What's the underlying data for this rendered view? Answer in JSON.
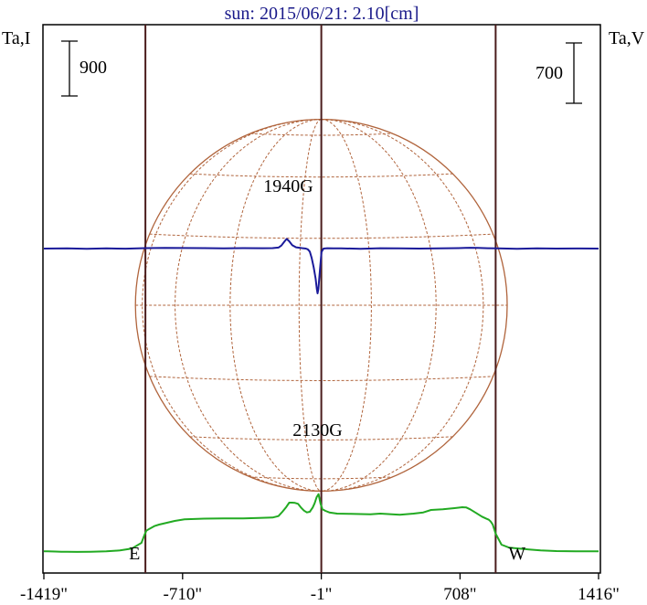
{
  "chart_data": {
    "type": "line",
    "title": "sun: 2015/06/21: 2.10[cm]",
    "left_axis_label": "Ta,I",
    "right_axis_label": "Ta,V",
    "left_scale_bar": {
      "label": "900",
      "value": 900
    },
    "right_scale_bar": {
      "label": "700",
      "value": 700
    },
    "x_ticks": [
      {
        "label": "-1419\"",
        "value": -1419
      },
      {
        "label": "-710\"",
        "value": -710
      },
      {
        "label": "-1\"",
        "value": -1
      },
      {
        "label": "708\"",
        "value": 708
      },
      {
        "label": "1416\"",
        "value": 1416
      }
    ],
    "xlim": [
      -1419,
      1416
    ],
    "limb_markers": [
      {
        "label": "E",
        "x": -900
      },
      {
        "label": "W",
        "x": 890
      }
    ],
    "center_line_x": -1,
    "annotations": [
      {
        "label": "1940G",
        "x": -170
      },
      {
        "label": "2130G",
        "x": -20
      }
    ],
    "solar_disk": {
      "radius_arcsec": 950,
      "color": "#b0643c"
    },
    "series": [
      {
        "color": "#22aa22",
        "x": [
          -1419,
          -1400,
          -1360,
          -1330,
          -1300,
          -1250,
          -1180,
          -1100,
          -1030,
          -970,
          -920,
          -905,
          -895,
          -880,
          -855,
          -830,
          -790,
          -750,
          -700,
          -600,
          -500,
          -400,
          -320,
          -250,
          -220,
          -200,
          -180,
          -165,
          -150,
          -135,
          -120,
          -105,
          -90,
          -75,
          -60,
          -45,
          -35,
          -25,
          -15,
          -5,
          5,
          20,
          40,
          80,
          150,
          250,
          300,
          400,
          470,
          520,
          560,
          620,
          680,
          720,
          740,
          760,
          790,
          820,
          840,
          855,
          865,
          875,
          890,
          920,
          960,
          1010,
          1060,
          1120,
          1200,
          1300,
          1416
        ],
        "y": [
          10,
          12,
          8,
          3,
          3,
          2,
          4,
          10,
          25,
          55,
          150,
          280,
          350,
          380,
          425,
          450,
          480,
          510,
          535,
          548,
          550,
          552,
          558,
          565,
          590,
          660,
          740,
          810,
          810,
          805,
          790,
          730,
          680,
          650,
          660,
          730,
          800,
          900,
          950,
          790,
          700,
          675,
          650,
          630,
          625,
          620,
          630,
          610,
          630,
          650,
          690,
          700,
          720,
          735,
          730,
          700,
          640,
          580,
          550,
          530,
          500,
          450,
          300,
          120,
          70,
          55,
          40,
          25,
          15,
          10,
          10
        ]
      },
      {
        "color": "#1a1a9a",
        "x": [
          -1419,
          -1300,
          -1200,
          -1100,
          -1000,
          -900,
          -800,
          -700,
          -600,
          -500,
          -400,
          -300,
          -250,
          -220,
          -205,
          -190,
          -178,
          -165,
          -150,
          -130,
          -100,
          -80,
          -70,
          -60,
          -50,
          -40,
          -30,
          -24,
          -20,
          -16,
          -10,
          0,
          10,
          30,
          60,
          100,
          200,
          300,
          400,
          500,
          600,
          700,
          760,
          800,
          850,
          900,
          1000,
          1100,
          1200,
          1300,
          1416
        ],
        "y": [
          0,
          3,
          -2,
          2,
          -1,
          5,
          8,
          6,
          5,
          3,
          5,
          4,
          5,
          12,
          35,
          80,
          112,
          85,
          40,
          15,
          5,
          0,
          -8,
          -35,
          -110,
          -220,
          -350,
          -470,
          -520,
          -470,
          -300,
          -40,
          0,
          4,
          2,
          3,
          -3,
          4,
          2,
          0,
          3,
          5,
          10,
          8,
          4,
          2,
          -3,
          2,
          0,
          1,
          0
        ]
      }
    ]
  }
}
